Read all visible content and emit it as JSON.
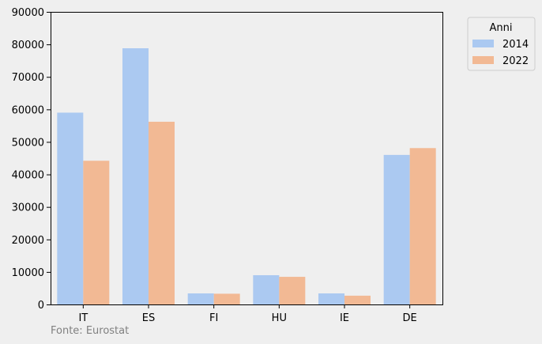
{
  "chart_data": {
    "type": "bar",
    "categories": [
      "IT",
      "ES",
      "FI",
      "HU",
      "IE",
      "DE"
    ],
    "series": [
      {
        "name": "2014",
        "values": [
          59000,
          78800,
          3400,
          9000,
          3400,
          46000
        ]
      },
      {
        "name": "2022",
        "values": [
          44200,
          56200,
          3300,
          8500,
          2700,
          48100
        ]
      }
    ],
    "colors": [
      "#abc9f1",
      "#f2b994"
    ],
    "ylim": [
      0,
      90000
    ],
    "yticks": [
      0,
      10000,
      20000,
      30000,
      40000,
      50000,
      60000,
      70000,
      80000,
      90000
    ],
    "legend": {
      "title": "Anni",
      "placement": "outside-top-right"
    },
    "source": "Fonte: Eurostat",
    "grid": false
  }
}
